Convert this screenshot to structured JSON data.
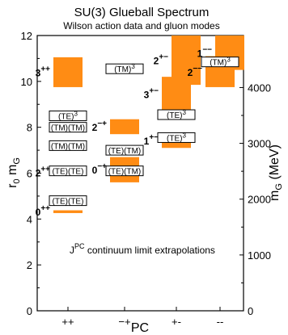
{
  "chart_data": {
    "type": "bar",
    "title": "SU(3) Glueball Spectrum",
    "subtitle": "Wilson action data and gluon modes",
    "xlabel": "PC",
    "ylabel": "r0 mG",
    "ylabel_main": "r",
    "ylabel_sub1": "0",
    "ylabel_mid": " m",
    "ylabel_sub2": "G",
    "y2label": "mG (MeV)",
    "y2label_main": "m",
    "y2label_sub": "G",
    "y2label_unit": " (MeV)",
    "categories": [
      "++",
      "-+",
      "+-",
      "--"
    ],
    "ylim": [
      0,
      12
    ],
    "y2lim": [
      0,
      4000
    ],
    "yticks": [
      0,
      2,
      4,
      6,
      8,
      10,
      12
    ],
    "y2ticks": [
      0,
      1000,
      2000,
      3000,
      4000
    ],
    "y2_conversion_mev_per_unit": 411,
    "annotation": {
      "prefix": "J",
      "sup": "PC",
      "text": " continuum limit extrapolations"
    },
    "glueballs": [
      {
        "category": "++",
        "j": "0",
        "pc": "++",
        "low": 4.26,
        "high": 4.38,
        "color": "#000000"
      },
      {
        "category": "++",
        "j": "2",
        "pc": "++",
        "low": 5.95,
        "high": 6.12,
        "color": "#000000"
      },
      {
        "category": "++",
        "j": "3",
        "pc": "++",
        "low": 9.75,
        "high": 11.05,
        "color": "#000000"
      },
      {
        "category": "-+",
        "j": "0",
        "pc": "-+",
        "low": 5.6,
        "high": 6.7,
        "color": "#000000"
      },
      {
        "category": "-+",
        "j": "2",
        "pc": "-+",
        "low": 7.7,
        "high": 8.35,
        "color": "#000000"
      },
      {
        "category": "+-",
        "j": "1",
        "pc": "+-",
        "low": 7.1,
        "high": 7.75,
        "color": "#000000"
      },
      {
        "category": "+-",
        "j": "3",
        "pc": "+-",
        "low": 8.7,
        "high": 10.2,
        "color": "#000000"
      },
      {
        "category": "+-",
        "j": "2",
        "pc": "+-",
        "low": 9.85,
        "high": 12.0,
        "color": "#e20fd0"
      },
      {
        "category": "--",
        "j": "2",
        "pc": "--",
        "low": 9.75,
        "high": 11.1,
        "color": "#000000"
      },
      {
        "category": "--",
        "j": "1",
        "pc": "--",
        "low": 10.5,
        "high": 12.0,
        "color": "#000000"
      }
    ],
    "gluon_modes": [
      {
        "category": "++",
        "label": "(TE)(TE)",
        "value": 4.8
      },
      {
        "category": "++",
        "label": "(TE)(TE)",
        "value": 6.1
      },
      {
        "category": "++",
        "label": "(TM)(TM)",
        "value": 7.2
      },
      {
        "category": "++",
        "label": "(TM)(TM)",
        "value": 8.0
      },
      {
        "category": "++",
        "label": "(TE)3",
        "value": 8.5
      },
      {
        "category": "-+",
        "label": "(TE)(TM)",
        "value": 6.1
      },
      {
        "category": "-+",
        "label": "(TE)(TM)",
        "value": 7.0
      },
      {
        "category": "-+",
        "label": "(TM)3",
        "value": 10.55
      },
      {
        "category": "+-",
        "label": "(TE)3",
        "value": 7.55
      },
      {
        "category": "+-",
        "label": "(TE)3",
        "value": 8.55
      },
      {
        "category": "--",
        "label": "(TM)3",
        "value": 10.85
      }
    ]
  }
}
